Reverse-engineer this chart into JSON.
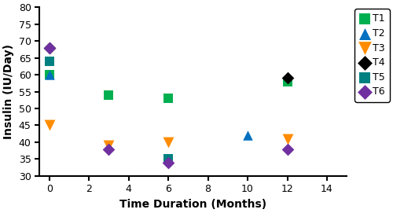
{
  "title": "",
  "xlabel": "Time Duration (Months)",
  "ylabel": "Insulin (IU/Day)",
  "xlim": [
    -0.5,
    15
  ],
  "ylim": [
    30,
    80
  ],
  "xticks": [
    0,
    2,
    4,
    6,
    8,
    10,
    12,
    14
  ],
  "yticks": [
    30,
    35,
    40,
    45,
    50,
    55,
    60,
    65,
    70,
    75,
    80
  ],
  "series": {
    "T1": {
      "x": [
        0,
        3,
        6,
        12
      ],
      "y": [
        60,
        54,
        53,
        58
      ],
      "color": "#00b050",
      "marker": "s",
      "markersize": 8,
      "label": "T1"
    },
    "T2": {
      "x": [
        0,
        10
      ],
      "y": [
        60,
        42
      ],
      "color": "#0070c0",
      "marker": "^",
      "markersize": 9,
      "label": "T2"
    },
    "T3": {
      "x": [
        0,
        3,
        6,
        12
      ],
      "y": [
        45,
        39,
        40,
        41
      ],
      "color": "#ff8c00",
      "marker": "v",
      "markersize": 10,
      "label": "T3"
    },
    "T4": {
      "x": [
        0,
        12
      ],
      "y": [
        68,
        59
      ],
      "color": "#000000",
      "marker": "D",
      "markersize": 8,
      "label": "T4"
    },
    "T5": {
      "x": [
        0,
        6
      ],
      "y": [
        64,
        35
      ],
      "color": "#008080",
      "marker": "s",
      "markersize": 8,
      "label": "T5"
    },
    "T6": {
      "x": [
        0,
        3,
        6,
        12
      ],
      "y": [
        68,
        38,
        34,
        38
      ],
      "color": "#7030a0",
      "marker": "D",
      "markersize": 8,
      "label": "T6"
    }
  },
  "legend_fontsize": 9,
  "axis_label_fontsize": 10,
  "tick_fontsize": 9,
  "figsize": [
    5.0,
    2.71
  ],
  "dpi": 100
}
